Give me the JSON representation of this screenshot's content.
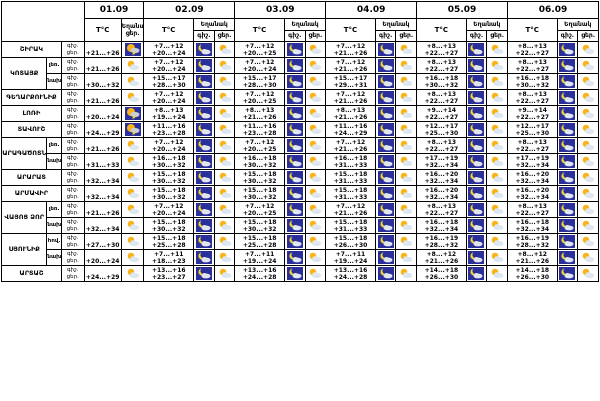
{
  "dates": [
    "01.09",
    "02.09",
    "03.09",
    "04.09",
    "05.09",
    "06.09"
  ],
  "labels": {
    "temp": "T°C",
    "cloud_head": "Եղանակ",
    "cloud_sub": "ցեր.",
    "night_head": "Եղանակ",
    "night": "գիշ.",
    "day": "ցեր."
  },
  "regions": [
    {
      "name": "ՇԻՐԱԿ",
      "subs": [
        {
          "sub": "",
          "periods": [
            "գիշ.",
            "ցեր."
          ],
          "temps": [
            [
              "+21...+26"
            ],
            [
              "+7...+12",
              "+20...+24"
            ],
            [
              "+7...+12",
              "+20...+25"
            ],
            [
              "+7...+12",
              "+21...+26"
            ],
            [
              "+8...+13",
              "+22...+27"
            ],
            [
              "+8...+13",
              "+22...+27"
            ]
          ],
          "first": "storm"
        }
      ]
    },
    {
      "name": "ԿՈՏԱՅՔ",
      "subs": [
        {
          "sub": "լեռ.",
          "periods": [
            "գիշ.",
            "ցեր."
          ],
          "temps": [
            [
              "+21...+26"
            ],
            [
              "+7...+12",
              "+20...+24"
            ],
            [
              "+7...+12",
              "+20...+24"
            ],
            [
              "+7...+12",
              "+21...+26"
            ],
            [
              "+8...+13",
              "+22...+27"
            ],
            [
              "+8...+13",
              "+22...+27"
            ]
          ],
          "first": "none"
        },
        {
          "sub": "նախ.",
          "periods": [
            "գիշ.",
            "ցեր."
          ],
          "temps": [
            [
              "+30...+32"
            ],
            [
              "+15...+17",
              "+28...+30"
            ],
            [
              "+15...+17",
              "+28...+30"
            ],
            [
              "+15...+17",
              "+29...+31"
            ],
            [
              "+16...+18",
              "+30...+32"
            ],
            [
              "+16...+18",
              "+30...+32"
            ]
          ],
          "first": "none"
        }
      ]
    },
    {
      "name": "ԳԵՂԱՐՔՈՒՆԻՔ",
      "subs": [
        {
          "sub": "",
          "periods": [
            "գիշ.",
            "ցեր."
          ],
          "temps": [
            [
              "+21...+26"
            ],
            [
              "+7...+12",
              "+20...+24"
            ],
            [
              "+7...+12",
              "+20...+25"
            ],
            [
              "+7...+12",
              "+21...+26"
            ],
            [
              "+8...+13",
              "+22...+27"
            ],
            [
              "+8...+13",
              "+22...+27"
            ]
          ],
          "first": "none"
        }
      ]
    },
    {
      "name": "ԼՈՌԻ",
      "subs": [
        {
          "sub": "",
          "periods": [
            "գիշ.",
            "ցեր."
          ],
          "temps": [
            [
              "+20...+24"
            ],
            [
              "+8...+13",
              "+19...+24"
            ],
            [
              "+8...+13",
              "+21...+26"
            ],
            [
              "+8...+13",
              "+21...+26"
            ],
            [
              "+9...+14",
              "+22...+27"
            ],
            [
              "+9...+14",
              "+22...+27"
            ]
          ],
          "first": "storm"
        }
      ]
    },
    {
      "name": "ՏԱՎՈՒՇ",
      "subs": [
        {
          "sub": "",
          "periods": [
            "գիշ.",
            "ցեր."
          ],
          "temps": [
            [
              "+24...+29"
            ],
            [
              "+11...+16",
              "+23...+28"
            ],
            [
              "+11...+16",
              "+23...+28"
            ],
            [
              "+11...+16",
              "+24...+29"
            ],
            [
              "+12...+17",
              "+25...+30"
            ],
            [
              "+12...+17",
              "+25...+30"
            ]
          ],
          "first": "storm"
        }
      ]
    },
    {
      "name": "ԱՐԱԳԱԾՈՏՆ",
      "subs": [
        {
          "sub": "լեռ.",
          "periods": [
            "գիշ.",
            "ցեր."
          ],
          "temps": [
            [
              "+21...+26"
            ],
            [
              "+7...+12",
              "+20...+24"
            ],
            [
              "+7...+12",
              "+20...+25"
            ],
            [
              "+7...+12",
              "+21...+26"
            ],
            [
              "+8...+13",
              "+22...+27"
            ],
            [
              "+8...+13",
              "+22...+27"
            ]
          ],
          "first": "none"
        },
        {
          "sub": "նախ.",
          "periods": [
            "գիշ.",
            "ցեր."
          ],
          "temps": [
            [
              "+31...+33"
            ],
            [
              "+16...+18",
              "+30...+32"
            ],
            [
              "+16...+18",
              "+30...+32"
            ],
            [
              "+16...+18",
              "+31...+33"
            ],
            [
              "+17...+19",
              "+32...+34"
            ],
            [
              "+17...+19",
              "+32...+34"
            ]
          ],
          "first": "none"
        }
      ]
    },
    {
      "name": "ԱՐԱՐԱՏ",
      "subs": [
        {
          "sub": "",
          "periods": [
            "գիշ.",
            "ցեր."
          ],
          "temps": [
            [
              "+32...+34"
            ],
            [
              "+15...+18",
              "+30...+32"
            ],
            [
              "+15...+18",
              "+30...+32"
            ],
            [
              "+15...+18",
              "+31...+33"
            ],
            [
              "+16...+20",
              "+32...+34"
            ],
            [
              "+16...+20",
              "+32...+34"
            ]
          ],
          "first": "none"
        }
      ]
    },
    {
      "name": "ԱՐՄԱՎԻՐ",
      "subs": [
        {
          "sub": "",
          "periods": [
            "գիշ.",
            "ցեր."
          ],
          "temps": [
            [
              "+32...+34"
            ],
            [
              "+15...+18",
              "+30...+32"
            ],
            [
              "+15...+18",
              "+30...+32"
            ],
            [
              "+15...+18",
              "+31...+33"
            ],
            [
              "+16...+20",
              "+32...+34"
            ],
            [
              "+16...+20",
              "+32...+34"
            ]
          ],
          "first": "none"
        }
      ]
    },
    {
      "name": "ՎԱՅՈՑ ՁՈՐ",
      "subs": [
        {
          "sub": "լեռ.",
          "periods": [
            "գիշ.",
            "ցեր."
          ],
          "temps": [
            [
              "+21...+26"
            ],
            [
              "+7...+12",
              "+20...+24"
            ],
            [
              "+7...+12",
              "+20...+25"
            ],
            [
              "+7...+12",
              "+21...+26"
            ],
            [
              "+8...+13",
              "+22...+27"
            ],
            [
              "+8...+13",
              "+22...+27"
            ]
          ],
          "first": "none"
        },
        {
          "sub": "նախ.",
          "periods": [
            "գիշ.",
            "ցեր."
          ],
          "temps": [
            [
              "+32...+34"
            ],
            [
              "+15...+18",
              "+30...+32"
            ],
            [
              "+15...+18",
              "+30...+32"
            ],
            [
              "+15...+18",
              "+31...+33"
            ],
            [
              "+16...+18",
              "+32...+34"
            ],
            [
              "+16...+18",
              "+32...+34"
            ]
          ],
          "first": "none"
        }
      ]
    },
    {
      "name": "ՍՅՈՒՆԻՔ",
      "subs": [
        {
          "sub": "հով.",
          "periods": [
            "գիշ.",
            "ցեր."
          ],
          "temps": [
            [
              "+27...+30"
            ],
            [
              "+15...+18",
              "+25...+28"
            ],
            [
              "+15...+18",
              "+25...+28"
            ],
            [
              "+15...+18",
              "+26...+30"
            ],
            [
              "+16...+19",
              "+28...+32"
            ],
            [
              "+16...+19",
              "+28...+32"
            ]
          ],
          "first": "none"
        },
        {
          "sub": "նախ.",
          "periods": [
            "գիշ.",
            "ցեր."
          ],
          "temps": [
            [
              "+20...+24"
            ],
            [
              "+7...+11",
              "+18...+23"
            ],
            [
              "+7...+11",
              "+19...+24"
            ],
            [
              "+7...+11",
              "+19...+24"
            ],
            [
              "+8...+12",
              "+21...+26"
            ],
            [
              "+8...+12",
              "+21...+26"
            ]
          ],
          "first": "none"
        }
      ]
    },
    {
      "name": "ԱՐՏԱՇ",
      "subs": [
        {
          "sub": "",
          "periods": [
            "գիշ.",
            "ցեր."
          ],
          "temps": [
            [
              "+24...+29"
            ],
            [
              "+13...+16",
              "+23...+27"
            ],
            [
              "+13...+16",
              "+24...+28"
            ],
            [
              "+13...+16",
              "+24...+28"
            ],
            [
              "+14...+18",
              "+26...+30"
            ],
            [
              "+14...+18",
              "+26...+30"
            ]
          ],
          "first": "none"
        }
      ]
    }
  ],
  "icons": {
    "night": "moon-cloud-icon",
    "day": "sun-cloud-icon",
    "storm": "sun-storm-icon"
  },
  "colors": {
    "night_bg": "#2a2f9a",
    "moon": "#f3d331",
    "sun": "#f6b41a",
    "cloud": "#dfe6ef"
  }
}
